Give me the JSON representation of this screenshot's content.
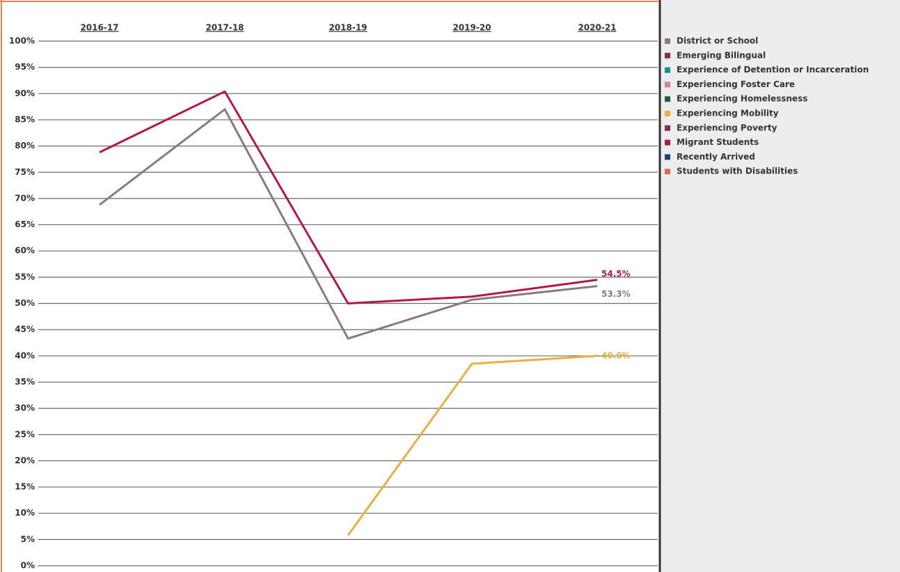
{
  "chart_data": {
    "type": "line",
    "categories": [
      "2016-17",
      "2017-18",
      "2018-19",
      "2019-20",
      "2020-21"
    ],
    "ylim": [
      0,
      100
    ],
    "yticks": [
      {
        "value": 0,
        "label": "0%"
      },
      {
        "value": 5,
        "label": "5%"
      },
      {
        "value": 10,
        "label": "10%"
      },
      {
        "value": 15,
        "label": "15%"
      },
      {
        "value": 20,
        "label": "20%"
      },
      {
        "value": 25,
        "label": "25%"
      },
      {
        "value": 30,
        "label": "30%"
      },
      {
        "value": 35,
        "label": "35%"
      },
      {
        "value": 40,
        "label": "40%"
      },
      {
        "value": 45,
        "label": "45%"
      },
      {
        "value": 50,
        "label": "50%"
      },
      {
        "value": 55,
        "label": "55%"
      },
      {
        "value": 60,
        "label": "60%"
      },
      {
        "value": 65,
        "label": "65%"
      },
      {
        "value": 70,
        "label": "70%"
      },
      {
        "value": 75,
        "label": "75%"
      },
      {
        "value": 80,
        "label": "80%"
      },
      {
        "value": 85,
        "label": "85%"
      },
      {
        "value": 90,
        "label": "90%"
      },
      {
        "value": 95,
        "label": "95%"
      },
      {
        "value": 100,
        "label": "100%"
      }
    ],
    "grid": true,
    "legend": "right",
    "series": [
      {
        "name": "District or School",
        "color": "#8a7a80",
        "values": [
          68.8,
          87.0,
          43.3,
          50.7,
          53.3
        ],
        "value_labels": [
          null,
          null,
          null,
          null,
          "53.3%"
        ]
      },
      {
        "name": "Emerging Bilingual",
        "color": "#8b2d3f",
        "values": [
          null,
          null,
          null,
          null,
          null
        ]
      },
      {
        "name": "Experience of Detention or Incarceration",
        "color": "#1a8c8c",
        "values": [
          null,
          null,
          null,
          null,
          null
        ]
      },
      {
        "name": "Experiencing Foster Care",
        "color": "#e07aa0",
        "values": [
          null,
          null,
          null,
          null,
          null
        ]
      },
      {
        "name": "Experiencing Homelessness",
        "color": "#1e5e3a",
        "values": [
          null,
          null,
          null,
          null,
          null
        ]
      },
      {
        "name": "Experiencing Mobility",
        "color": "#e8b040",
        "values": [
          null,
          null,
          5.8,
          38.5,
          40.0
        ],
        "value_labels": [
          null,
          null,
          null,
          null,
          "40.0%"
        ]
      },
      {
        "name": "Experiencing Poverty",
        "color": "#8e2a5a",
        "values": [
          null,
          null,
          null,
          null,
          null
        ]
      },
      {
        "name": "Migrant Students",
        "color": "#b3174b",
        "values": [
          78.8,
          90.4,
          50.0,
          51.3,
          54.5
        ],
        "value_labels": [
          null,
          null,
          null,
          null,
          "54.5%"
        ]
      },
      {
        "name": "Recently Arrived",
        "color": "#1f3f7a",
        "values": [
          null,
          null,
          null,
          null,
          null
        ]
      },
      {
        "name": "Students with Disabilities",
        "color": "#e06a4a",
        "values": [
          null,
          null,
          null,
          null,
          null
        ]
      }
    ]
  }
}
